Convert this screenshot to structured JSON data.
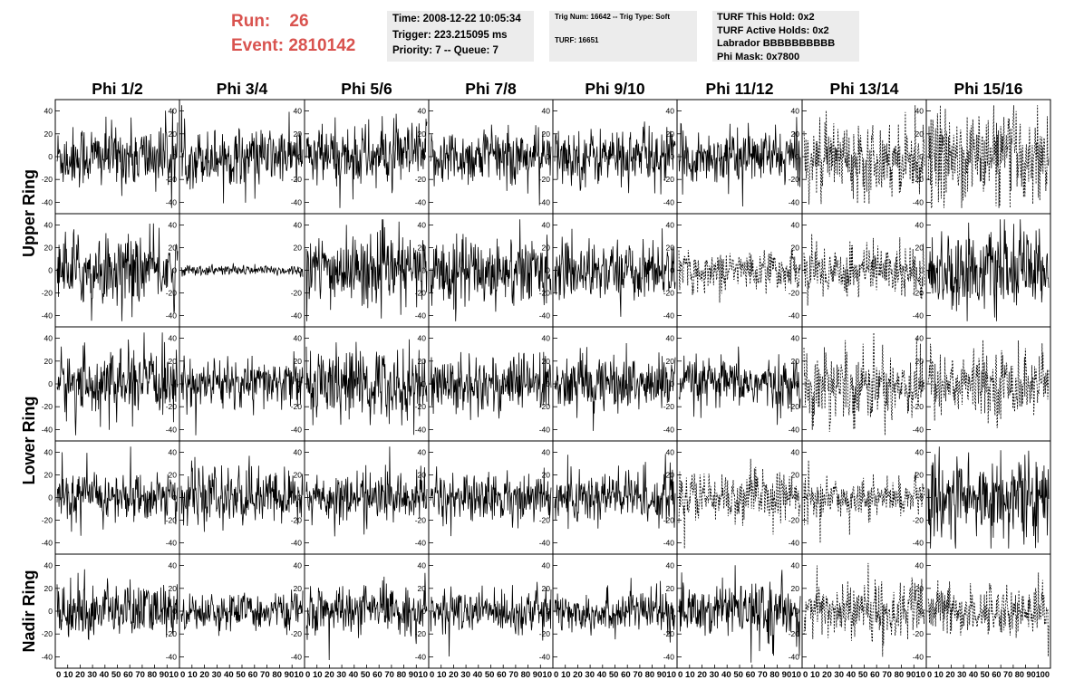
{
  "run_info": {
    "run_label": "Run:",
    "run_value": "26",
    "event_label": "Event:",
    "event_value": "2810142",
    "color": "#d9534f"
  },
  "time_box": {
    "time": "Time: 2008-12-22 10:05:34",
    "trigger": "Trigger: 223.215095 ms",
    "priority": "Priority: 7 -- Queue: 7"
  },
  "trig_box": {
    "trig": "Trig Num: 16642 -- Trig Type: Soft",
    "turf": "TURF: 16651"
  },
  "turf_box": {
    "this_hold": "TURF This Hold: 0x2",
    "active_holds": "TURF Active Holds: 0x2",
    "labrador": "Labrador BBBBBBBBBB",
    "phi_mask": "Phi Mask: 0x7800"
  },
  "chart_data": {
    "type": "line",
    "phi_labels": [
      "Phi 1/2",
      "Phi 3/4",
      "Phi 5/6",
      "Phi 7/8",
      "Phi 9/10",
      "Phi 11/12",
      "Phi 13/14",
      "Phi 15/16"
    ],
    "ring_labels": [
      "Upper Ring",
      "Upper Ring",
      "Lower Ring",
      "Lower Ring",
      "Nadir Ring"
    ],
    "ring_label_rows": [
      [
        0,
        1
      ],
      [
        2,
        3
      ],
      [
        4,
        4
      ]
    ],
    "ylim": [
      -50,
      50
    ],
    "y_ticks": [
      "40",
      "20",
      "0",
      "-20",
      "-40"
    ],
    "y_tick_values": [
      40,
      20,
      0,
      -20,
      -40
    ],
    "xlim": [
      0,
      100
    ],
    "x_tick_text": "0 10 20 30 40 50 60 70 80 90100",
    "x_tick_labels_first": "0 10 20 30 40 50 60 70 80 9010",
    "x_tick_labels_middle": "0 10 20 30 40 50 60 70 80 9010",
    "x_tick_labels_last": "0 10 20 30 40 50 60 70 80 90100",
    "samples_per_trace": 260,
    "amplitudes": [
      [
        18,
        16,
        18,
        16,
        16,
        15,
        20,
        26
      ],
      [
        20,
        3,
        20,
        20,
        16,
        11,
        15,
        22
      ],
      [
        18,
        14,
        20,
        17,
        16,
        14,
        20,
        18
      ],
      [
        14,
        16,
        14,
        14,
        16,
        14,
        10,
        24
      ],
      [
        16,
        10,
        13,
        12,
        12,
        15,
        16,
        14
      ]
    ],
    "dashed": [
      [
        false,
        false,
        false,
        false,
        false,
        false,
        true,
        true
      ],
      [
        false,
        false,
        false,
        false,
        false,
        true,
        true,
        false
      ],
      [
        false,
        false,
        false,
        false,
        false,
        false,
        true,
        true
      ],
      [
        false,
        false,
        false,
        false,
        false,
        true,
        true,
        false
      ],
      [
        false,
        false,
        false,
        false,
        false,
        false,
        true,
        true
      ]
    ],
    "grid": false
  }
}
